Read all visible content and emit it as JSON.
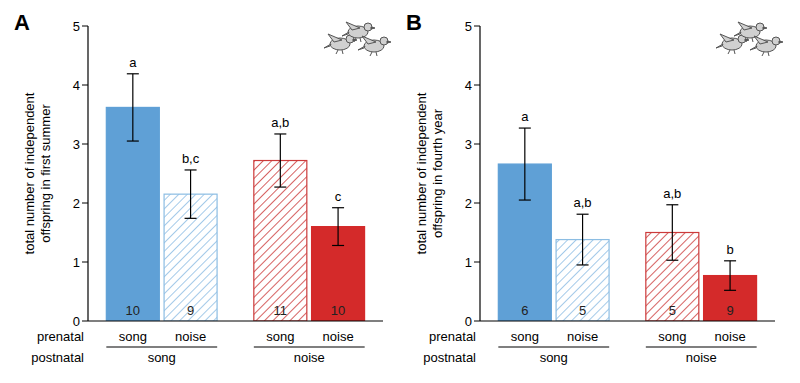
{
  "chart_data": [
    {
      "type": "bar",
      "title": "A",
      "ylabel": [
        "total number of independent",
        "offspring in first summer"
      ],
      "x_row_labels": [
        "prenatal",
        "postnatal"
      ],
      "categories": [
        "song",
        "noise",
        "song",
        "noise"
      ],
      "groups": [
        "song",
        "song",
        "noise",
        "noise"
      ],
      "values": [
        3.62,
        2.15,
        2.72,
        1.6
      ],
      "error": [
        0.57,
        0.41,
        0.45,
        0.32
      ],
      "letters": [
        "a",
        "b,c",
        "a,b",
        "c"
      ],
      "n": [
        10,
        9,
        11,
        10
      ],
      "colors": [
        "#5fa0d6",
        "#8cbde3",
        "#cc3a3a",
        "#d42a2a"
      ],
      "ylim": [
        0,
        5
      ],
      "yticks": [
        0,
        1,
        2,
        3,
        4,
        5
      ]
    },
    {
      "type": "bar",
      "title": "B",
      "ylabel": [
        "total number of independent",
        "offspring in fourth year"
      ],
      "x_row_labels": [
        "prenatal",
        "postnatal"
      ],
      "categories": [
        "song",
        "noise",
        "song",
        "noise"
      ],
      "groups": [
        "song",
        "song",
        "noise",
        "noise"
      ],
      "values": [
        2.66,
        1.38,
        1.5,
        0.77
      ],
      "error": [
        0.61,
        0.43,
        0.47,
        0.25
      ],
      "letters": [
        "a",
        "a,b",
        "a,b",
        "b"
      ],
      "n": [
        6,
        5,
        5,
        9
      ],
      "colors": [
        "#5fa0d6",
        "#8cbde3",
        "#cc3a3a",
        "#d42a2a"
      ],
      "ylim": [
        0,
        5
      ],
      "yticks": [
        0,
        1,
        2,
        3,
        4,
        5
      ]
    }
  ]
}
